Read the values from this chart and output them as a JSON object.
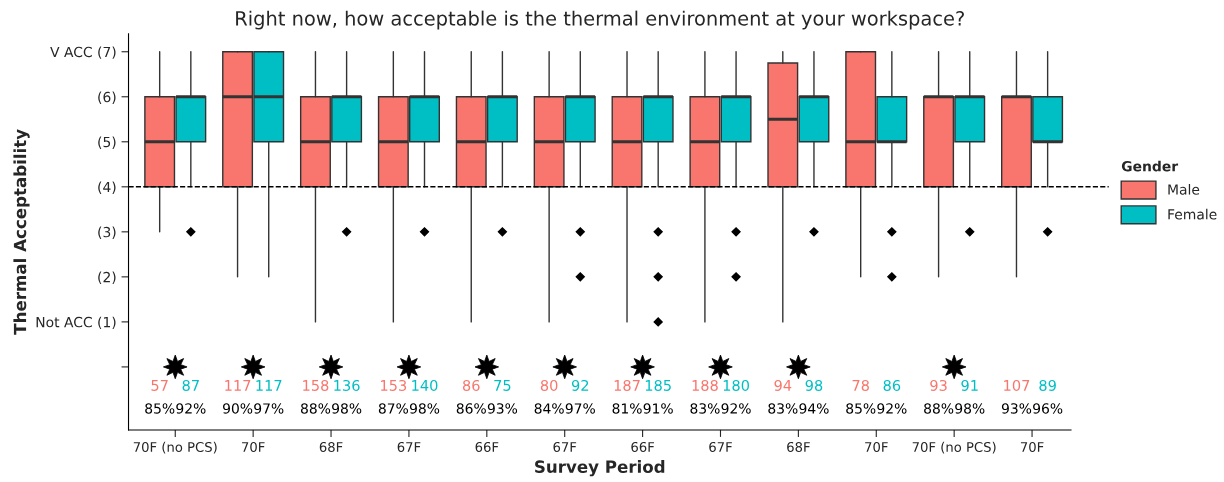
{
  "chart_data": {
    "type": "box",
    "title": "Right now, how acceptable is the thermal environment at your workspace?",
    "xlabel": "Survey Period",
    "ylabel": "Thermal Acceptability",
    "legend_title": "Gender",
    "legend": "right",
    "categories": [
      "70F (no PCS)",
      "70F",
      "68F",
      "67F",
      "66F",
      "67F",
      "66F",
      "67F",
      "68F",
      "70F",
      "70F (no PCS)",
      "70F"
    ],
    "ylim": [
      -1.4,
      7.4
    ],
    "yticks": [
      {
        "value": 0,
        "label": null
      },
      {
        "value": 1,
        "label": "Not ACC (1)"
      },
      {
        "value": 2,
        "label": "(2)"
      },
      {
        "value": 3,
        "label": "(3)"
      },
      {
        "value": 4,
        "label": "(4)"
      },
      {
        "value": 5,
        "label": "(5)"
      },
      {
        "value": 6,
        "label": "(6)"
      },
      {
        "value": 7,
        "label": "V ACC (7)"
      }
    ],
    "ref_lines": [
      {
        "axis": "y",
        "value": 4,
        "line_style": "dashed",
        "color": "#000000"
      }
    ],
    "series": [
      {
        "name": "Male",
        "color": "#f8766d",
        "value_labels": [
          "57",
          "117",
          "158",
          "153",
          "86",
          "80",
          "187",
          "188",
          "94",
          "78",
          "93",
          "107"
        ],
        "boxes": [
          {
            "low": 3,
            "q1": 4,
            "median": 5,
            "q3": 6,
            "high": 7
          },
          {
            "low": 2,
            "q1": 4,
            "median": 6,
            "q3": 7,
            "high": 7
          },
          {
            "low": 1,
            "q1": 4,
            "median": 5,
            "q3": 6,
            "high": 7
          },
          {
            "low": 1,
            "q1": 4,
            "median": 5,
            "q3": 6,
            "high": 7
          },
          {
            "low": 1,
            "q1": 4,
            "median": 5,
            "q3": 6,
            "high": 7
          },
          {
            "low": 1,
            "q1": 4,
            "median": 5,
            "q3": 6,
            "high": 7
          },
          {
            "low": 1,
            "q1": 4,
            "median": 5,
            "q3": 6,
            "high": 7
          },
          {
            "low": 1,
            "q1": 4,
            "median": 5,
            "q3": 6,
            "high": 7
          },
          {
            "low": 1,
            "q1": 4,
            "median": 5.5,
            "q3": 6.75,
            "high": 7
          },
          {
            "low": 2,
            "q1": 4,
            "median": 5,
            "q3": 7,
            "high": 7
          },
          {
            "low": 2,
            "q1": 4,
            "median": 6,
            "q3": 6,
            "high": 7
          },
          {
            "low": 2,
            "q1": 4,
            "median": 6,
            "q3": 6,
            "high": 7
          }
        ]
      },
      {
        "name": "Female",
        "color": "#00bfc4",
        "value_labels": [
          "87",
          "117",
          "136",
          "140",
          "75",
          "92",
          "185",
          "180",
          "98",
          "86",
          "91",
          "89"
        ],
        "boxes": [
          {
            "low": 4,
            "q1": 5,
            "median": 6,
            "q3": 6,
            "high": 7,
            "outliers": [
              3
            ]
          },
          {
            "low": 2,
            "q1": 5,
            "median": 6,
            "q3": 7,
            "high": 7
          },
          {
            "low": 4,
            "q1": 5,
            "median": 6,
            "q3": 6,
            "high": 7,
            "outliers": [
              3
            ]
          },
          {
            "low": 4,
            "q1": 5,
            "median": 6,
            "q3": 6,
            "high": 7,
            "outliers": [
              3
            ]
          },
          {
            "low": 4,
            "q1": 5,
            "median": 6,
            "q3": 6,
            "high": 7,
            "outliers": [
              3
            ]
          },
          {
            "low": 4,
            "q1": 5,
            "median": 6,
            "q3": 6,
            "high": 7,
            "outliers": [
              3,
              2
            ]
          },
          {
            "low": 4,
            "q1": 5,
            "median": 6,
            "q3": 6,
            "high": 7,
            "outliers": [
              3,
              2,
              1
            ]
          },
          {
            "low": 4,
            "q1": 5,
            "median": 6,
            "q3": 6,
            "high": 7,
            "outliers": [
              3,
              2
            ]
          },
          {
            "low": 4,
            "q1": 5,
            "median": 6,
            "q3": 6,
            "high": 7,
            "outliers": [
              3
            ]
          },
          {
            "low": 4,
            "q1": 5,
            "median": 5,
            "q3": 6,
            "high": 7,
            "outliers": [
              3,
              2
            ]
          },
          {
            "low": 4,
            "q1": 5,
            "median": 6,
            "q3": 6,
            "high": 7,
            "outliers": [
              3
            ]
          },
          {
            "low": 4,
            "q1": 5,
            "median": 5,
            "q3": 6,
            "high": 7,
            "outliers": [
              3
            ]
          }
        ]
      },
      {
        "type": "scatter",
        "color": "#000000",
        "marker": "star",
        "values": [
          0,
          0,
          0,
          0,
          0,
          0,
          0,
          0,
          0,
          null,
          0,
          null
        ]
      }
    ],
    "annotations": [
      "85%",
      "92%",
      "90%",
      "97%",
      "88%",
      "98%",
      "87%",
      "98%",
      "86%",
      "93%",
      "84%",
      "97%",
      "81%",
      "91%",
      "83%",
      "92%",
      "83%",
      "94%",
      "85%",
      "92%",
      "88%",
      "98%",
      "93%",
      "96%"
    ]
  }
}
